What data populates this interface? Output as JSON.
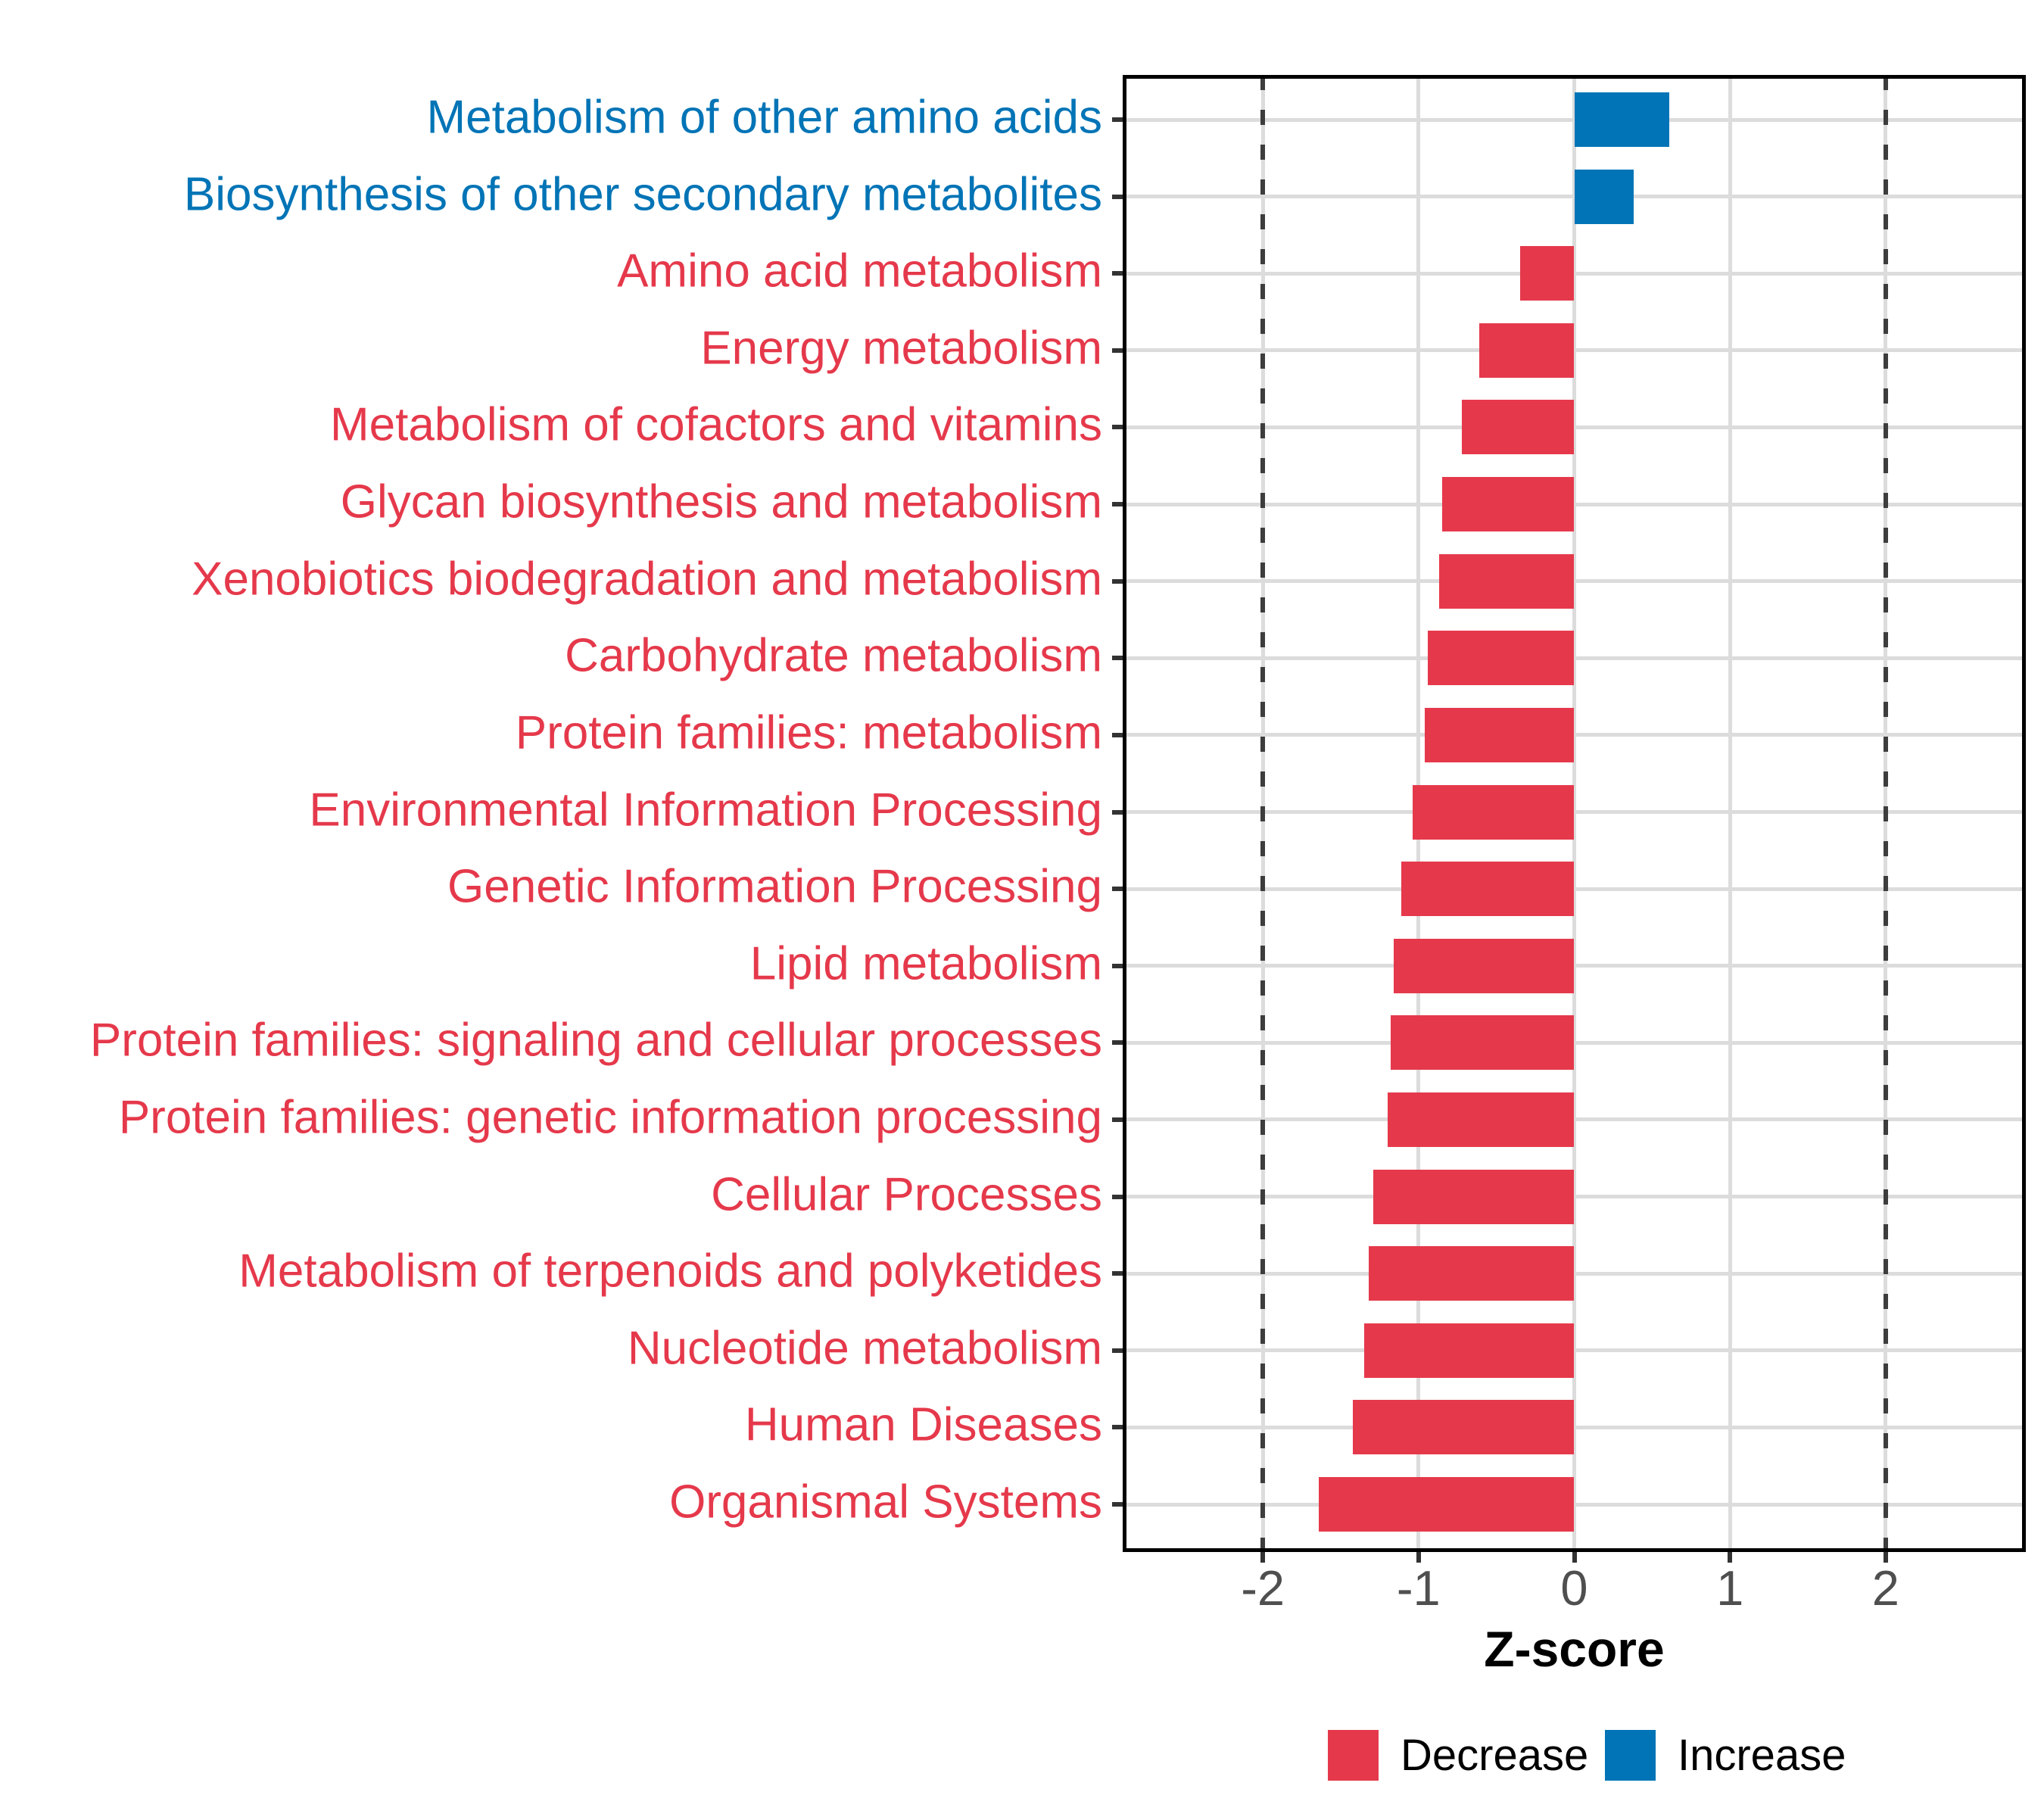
{
  "chart_data": {
    "type": "bar",
    "orientation": "horizontal",
    "xlabel": "Z-score",
    "xlim": [
      -2.9,
      2.9
    ],
    "grid": true,
    "x_ticks": [
      {
        "value": -2,
        "label": "-2"
      },
      {
        "value": -1,
        "label": "-1"
      },
      {
        "value": 0,
        "label": "0"
      },
      {
        "value": 1,
        "label": "1"
      },
      {
        "value": 2,
        "label": "2"
      }
    ],
    "reference_lines": [
      -2,
      2
    ],
    "categories": [
      "Metabolism of other amino acids",
      "Biosynthesis of other secondary metabolites",
      "Amino acid metabolism",
      "Energy metabolism",
      "Metabolism of cofactors and vitamins",
      "Glycan biosynthesis and metabolism",
      "Xenobiotics biodegradation and metabolism",
      "Carbohydrate metabolism",
      "Protein families: metabolism",
      "Environmental Information Processing",
      "Genetic Information Processing",
      "Lipid metabolism",
      "Protein families: signaling and cellular processes",
      "Protein families: genetic information processing",
      "Cellular Processes",
      "Metabolism of terpenoids and polyketides",
      "Nucleotide metabolism",
      "Human Diseases",
      "Organismal Systems"
    ],
    "values": [
      0.61,
      0.38,
      -0.35,
      -0.61,
      -0.72,
      -0.85,
      -0.87,
      -0.94,
      -0.96,
      -1.04,
      -1.11,
      -1.16,
      -1.18,
      -1.2,
      -1.29,
      -1.32,
      -1.35,
      -1.42,
      -1.64
    ],
    "directions": [
      "increase",
      "increase",
      "decrease",
      "decrease",
      "decrease",
      "decrease",
      "decrease",
      "decrease",
      "decrease",
      "decrease",
      "decrease",
      "decrease",
      "decrease",
      "decrease",
      "decrease",
      "decrease",
      "decrease",
      "decrease",
      "decrease"
    ],
    "colors": {
      "decrease": "#E5394B",
      "increase": "#0074B6"
    },
    "legend": [
      {
        "label": "Decrease",
        "color": "#E5394B"
      },
      {
        "label": "Increase",
        "color": "#0074B6"
      }
    ],
    "legend_position": "bottom"
  },
  "style_colors": {
    "gridline": "#DCDCDC",
    "reference_line": "#3D3D3D",
    "tick_mark": "#333333",
    "tick_text": "#4F4F4F",
    "panel_border": "#000000"
  }
}
